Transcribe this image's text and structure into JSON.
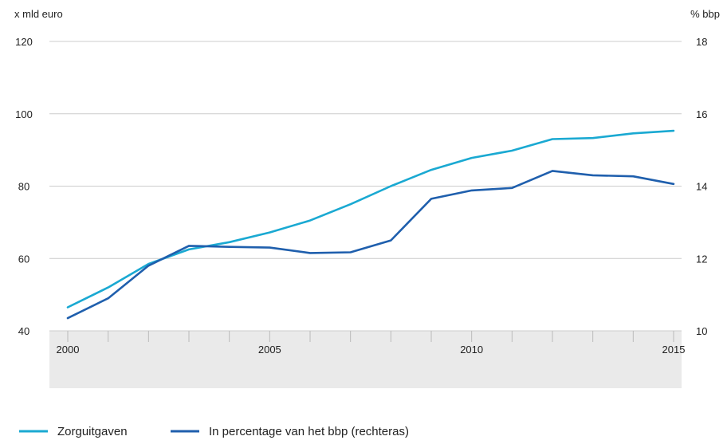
{
  "chart_data": {
    "type": "line",
    "title": "",
    "xlabel": "",
    "y_left_label": "x mld euro",
    "y_right_label": "% bbp",
    "x": [
      2000,
      2001,
      2002,
      2003,
      2004,
      2005,
      2006,
      2007,
      2008,
      2009,
      2010,
      2011,
      2012,
      2013,
      2014,
      2015
    ],
    "x_tick_labels": [
      "2000",
      "2005",
      "2010",
      "2015"
    ],
    "y_left_ticks": [
      "40",
      "60",
      "80",
      "100",
      "120"
    ],
    "y_left_lim": [
      40,
      120
    ],
    "y_right_ticks": [
      "10",
      "12",
      "14",
      "16",
      "18"
    ],
    "y_right_lim": [
      10,
      18
    ],
    "grid": "horizontal",
    "legend_position": "bottom-left",
    "series": [
      {
        "name": "Zorguitgaven",
        "axis": "left",
        "color": "#1aa9d2",
        "values": [
          46.5,
          52.0,
          58.5,
          62.5,
          64.5,
          67.2,
          70.5,
          75.0,
          80.0,
          84.5,
          87.8,
          89.8,
          93.0,
          93.3,
          94.6,
          95.3
        ]
      },
      {
        "name": "In percentage van het bbp (rechteras)",
        "axis": "right",
        "color": "#1f5fad",
        "values": [
          10.35,
          10.9,
          11.8,
          12.35,
          12.32,
          12.3,
          12.15,
          12.17,
          12.5,
          13.65,
          13.88,
          13.95,
          14.42,
          14.3,
          14.27,
          14.06
        ]
      }
    ]
  }
}
